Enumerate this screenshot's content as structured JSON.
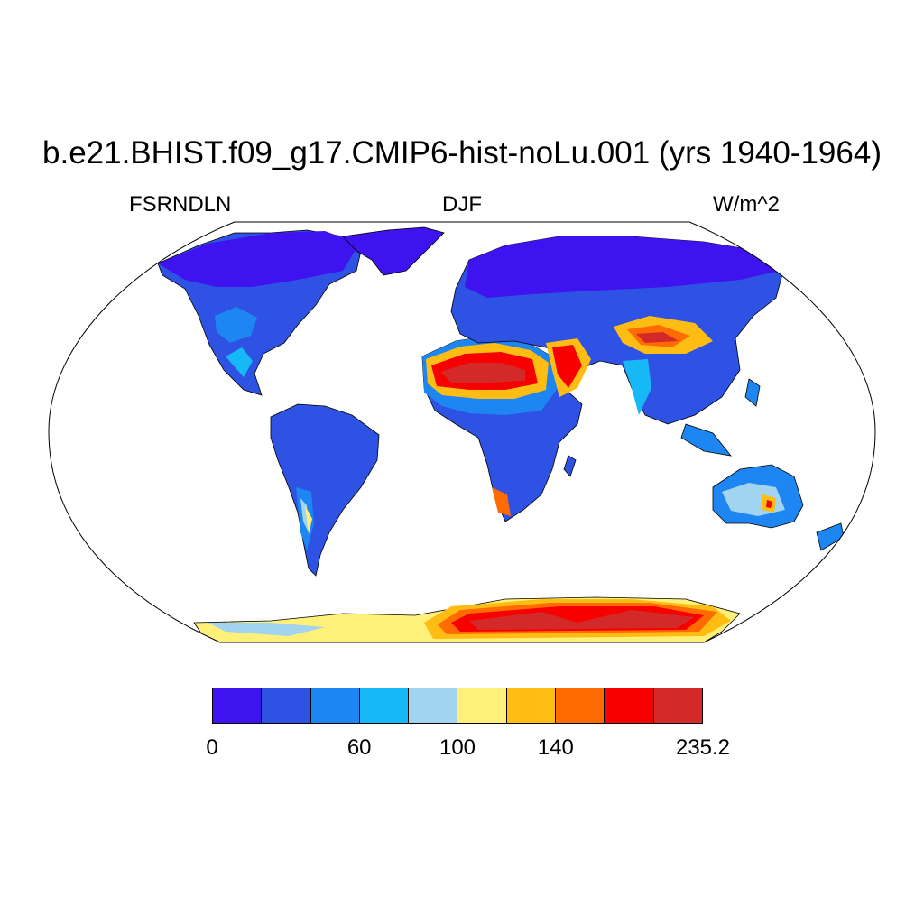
{
  "title": "b.e21.BHIST.f09_g17.CMIP6-hist-noLu.001 (yrs 1940-1964)",
  "left_label": "FSRNDLN",
  "center_label": "DJF",
  "right_label": "W/m^2",
  "map": {
    "projection": "Robinson (world)",
    "variable": "FSRNDLN",
    "season": "DJF",
    "units": "W/m^2"
  },
  "colorbar": {
    "colors": [
      "#3f12f0",
      "#2e52e3",
      "#1e86f2",
      "#16b9f5",
      "#a2d4ef",
      "#fff07a",
      "#ffbd14",
      "#ff6b00",
      "#f60000",
      "#d42929"
    ],
    "tick_labels": [
      "0",
      "60",
      "100",
      "140",
      "235.2"
    ],
    "tick_boundary_index": [
      0,
      3,
      5,
      7,
      10
    ]
  }
}
